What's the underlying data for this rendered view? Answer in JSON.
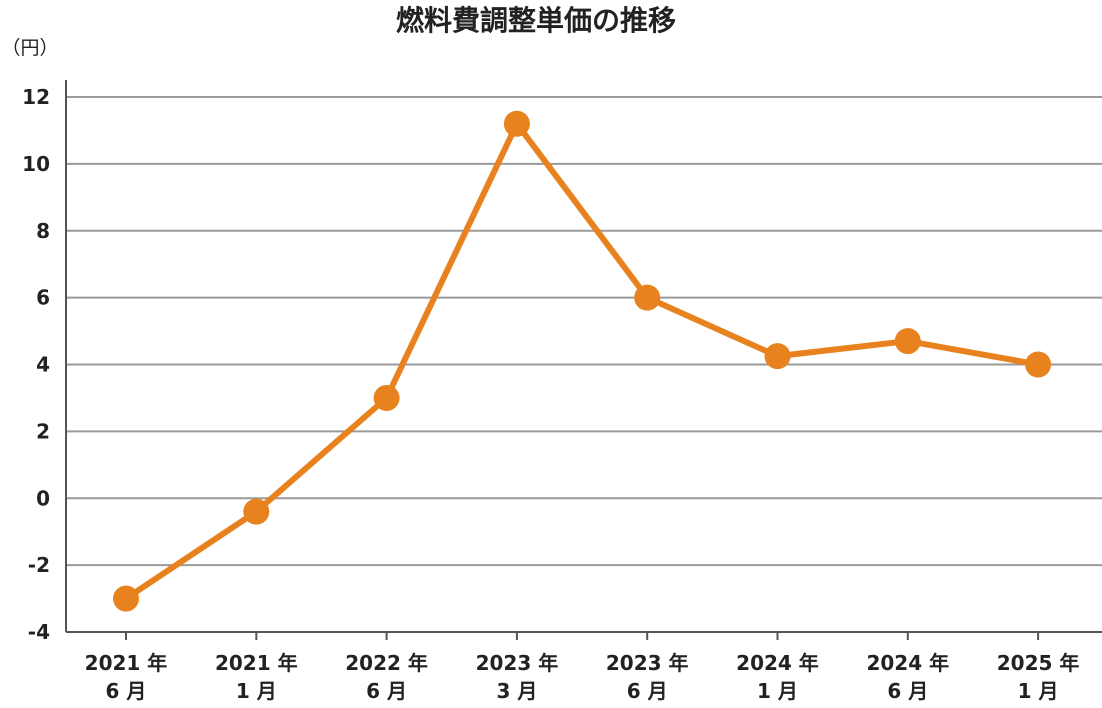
{
  "chart_data": {
    "type": "line",
    "title": "燃料費調整単価の推移",
    "ylabel": "（円）",
    "xlabel": "",
    "categories": [
      [
        "2021 年",
        "6 月"
      ],
      [
        "2021 年",
        "1 月"
      ],
      [
        "2022 年",
        "6 月"
      ],
      [
        "2023 年",
        "3 月"
      ],
      [
        "2023 年",
        "6 月"
      ],
      [
        "2024 年",
        "1 月"
      ],
      [
        "2024 年",
        "6 月"
      ],
      [
        "2025 年",
        "1 月"
      ]
    ],
    "series": [
      {
        "values": [
          -3.0,
          -0.4,
          3.0,
          11.2,
          6.0,
          4.25,
          4.7,
          4.0
        ]
      }
    ],
    "ylim": [
      -4,
      12
    ],
    "yticks": [
      "12",
      "10",
      "8",
      "6",
      "4",
      "2",
      "0",
      "-2",
      "-4"
    ],
    "grid": true,
    "legend": "none",
    "colors": {
      "line": "#E8821E",
      "grid": "#9a9a9a",
      "axis": "#555555"
    }
  }
}
